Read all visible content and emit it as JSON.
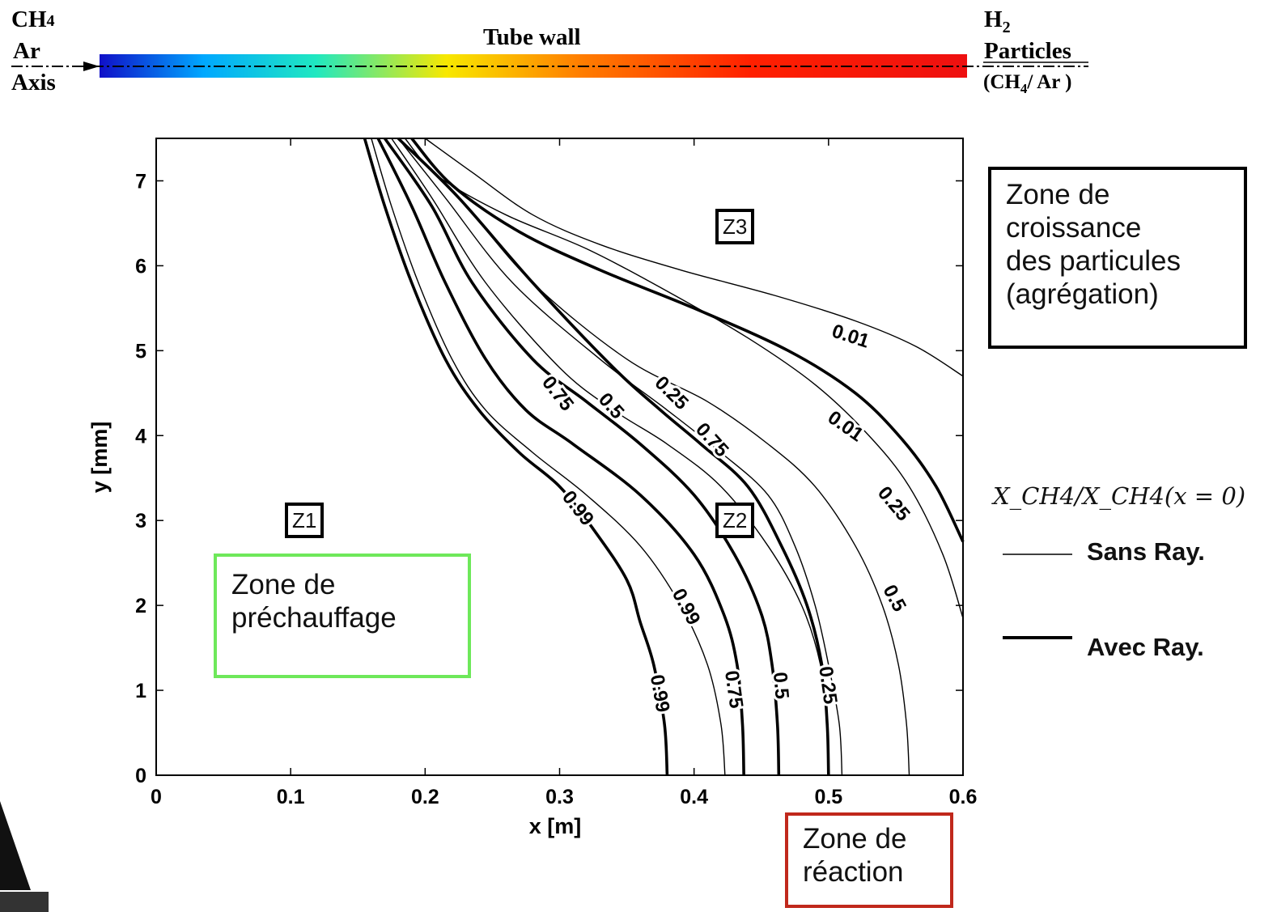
{
  "tube": {
    "inlet_top": "CH",
    "inlet_top_sub": "4",
    "inlet_mid": "Ar",
    "inlet_axis": "Axis",
    "title": "Tube wall",
    "outlet_top": "H",
    "outlet_top_sub": "2",
    "outlet_mid": "Particles",
    "outlet_bottom_pre": "(CH",
    "outlet_bottom_sub": "4",
    "outlet_bottom_post": "/ Ar )",
    "gradient_colors": [
      "#1010c8",
      "#00a8ff",
      "#20e8c0",
      "#f8e800",
      "#ff8000",
      "#ff2000",
      "#ee1010"
    ]
  },
  "annotations": {
    "zone_growth": [
      "Zone de",
      "croissance",
      "des particules",
      "(agrégation)"
    ],
    "zone_preheat": [
      "Zone de",
      "préchauffage"
    ],
    "zone_reaction": [
      "Zone de",
      "réaction"
    ],
    "z1": "Z1",
    "z2": "Z2",
    "z3": "Z3",
    "preheat_color": "#6ee85a",
    "reaction_color": "#c0281c"
  },
  "legend": {
    "title": "X_CH4/X_CH4(x = 0)",
    "sans": "Sans Ray.",
    "avec": "Avec Ray."
  },
  "chart_data": {
    "type": "line",
    "xlabel": "x [m]",
    "ylabel": "y [mm]",
    "xlim": [
      0,
      0.6
    ],
    "ylim": [
      0,
      7.5
    ],
    "xticks": [
      0,
      0.1,
      0.2,
      0.3,
      0.4,
      0.5,
      0.6
    ],
    "xtick_labels": [
      "0",
      "0.1",
      "0.2",
      "0.3",
      "0.4",
      "0.5",
      "0.6"
    ],
    "yticks": [
      0,
      1,
      2,
      3,
      4,
      5,
      6,
      7
    ],
    "ytick_labels": [
      "0",
      "1",
      "2",
      "3",
      "4",
      "5",
      "6",
      "7"
    ],
    "grid": false,
    "series": [
      {
        "level": "0.99",
        "style": "avec",
        "points": [
          [
            0.38,
            0
          ],
          [
            0.378,
            0.6
          ],
          [
            0.37,
            1.3
          ],
          [
            0.36,
            1.8
          ],
          [
            0.35,
            2.3
          ],
          [
            0.325,
            2.9
          ],
          [
            0.3,
            3.4
          ],
          [
            0.27,
            3.8
          ],
          [
            0.24,
            4.3
          ],
          [
            0.215,
            4.9
          ],
          [
            0.19,
            5.8
          ],
          [
            0.17,
            6.7
          ],
          [
            0.155,
            7.5
          ]
        ]
      },
      {
        "level": "0.99",
        "style": "sans",
        "points": [
          [
            0.423,
            0
          ],
          [
            0.42,
            0.6
          ],
          [
            0.41,
            1.3
          ],
          [
            0.39,
            2.0
          ],
          [
            0.36,
            2.7
          ],
          [
            0.32,
            3.3
          ],
          [
            0.28,
            3.8
          ],
          [
            0.245,
            4.3
          ],
          [
            0.22,
            4.9
          ],
          [
            0.195,
            5.8
          ],
          [
            0.175,
            6.7
          ],
          [
            0.16,
            7.5
          ]
        ]
      },
      {
        "level": "0.75",
        "style": "avec",
        "points": [
          [
            0.437,
            0
          ],
          [
            0.436,
            0.6
          ],
          [
            0.432,
            1.3
          ],
          [
            0.422,
            1.9
          ],
          [
            0.4,
            2.6
          ],
          [
            0.36,
            3.3
          ],
          [
            0.31,
            3.9
          ],
          [
            0.275,
            4.3
          ],
          [
            0.245,
            4.9
          ],
          [
            0.215,
            5.8
          ],
          [
            0.19,
            6.7
          ],
          [
            0.165,
            7.5
          ]
        ]
      },
      {
        "level": "0.5",
        "style": "avec",
        "points": [
          [
            0.463,
            0
          ],
          [
            0.462,
            0.6
          ],
          [
            0.458,
            1.3
          ],
          [
            0.45,
            1.9
          ],
          [
            0.43,
            2.6
          ],
          [
            0.4,
            3.3
          ],
          [
            0.36,
            3.9
          ],
          [
            0.32,
            4.4
          ],
          [
            0.28,
            4.9
          ],
          [
            0.235,
            5.8
          ],
          [
            0.205,
            6.7
          ],
          [
            0.17,
            7.5
          ]
        ]
      },
      {
        "level": "0.75",
        "style": "sans",
        "points": [
          [
            0.5,
            0
          ],
          [
            0.499,
            0.6
          ],
          [
            0.494,
            1.3
          ],
          [
            0.48,
            2.0
          ],
          [
            0.455,
            2.7
          ],
          [
            0.42,
            3.4
          ],
          [
            0.38,
            3.9
          ],
          [
            0.34,
            4.3
          ],
          [
            0.3,
            4.8
          ],
          [
            0.245,
            5.8
          ],
          [
            0.205,
            6.8
          ],
          [
            0.175,
            7.5
          ]
        ]
      },
      {
        "level": "0.25",
        "style": "avec",
        "points": [
          [
            0.5,
            0
          ],
          [
            0.499,
            0.6
          ],
          [
            0.495,
            1.3
          ],
          [
            0.484,
            2.0
          ],
          [
            0.465,
            2.7
          ],
          [
            0.44,
            3.4
          ],
          [
            0.405,
            3.9
          ],
          [
            0.375,
            4.3
          ],
          [
            0.34,
            4.8
          ],
          [
            0.28,
            5.8
          ],
          [
            0.225,
            6.8
          ],
          [
            0.18,
            7.5
          ]
        ]
      },
      {
        "level": "0.5",
        "style": "sans",
        "points": [
          [
            0.51,
            0
          ],
          [
            0.508,
            0.6
          ],
          [
            0.5,
            1.3
          ],
          [
            0.49,
            2.0
          ],
          [
            0.475,
            2.7
          ],
          [
            0.455,
            3.3
          ],
          [
            0.42,
            3.8
          ],
          [
            0.38,
            4.3
          ],
          [
            0.33,
            4.9
          ],
          [
            0.265,
            5.8
          ],
          [
            0.215,
            6.8
          ],
          [
            0.18,
            7.5
          ]
        ]
      },
      {
        "level": "0.25",
        "style": "sans",
        "points": [
          [
            0.56,
            0
          ],
          [
            0.558,
            0.6
          ],
          [
            0.552,
            1.3
          ],
          [
            0.54,
            2.0
          ],
          [
            0.52,
            2.7
          ],
          [
            0.49,
            3.4
          ],
          [
            0.455,
            3.9
          ],
          [
            0.41,
            4.4
          ],
          [
            0.35,
            4.9
          ],
          [
            0.28,
            5.8
          ],
          [
            0.225,
            6.8
          ],
          [
            0.18,
            7.5
          ]
        ]
      },
      {
        "level": "0.01",
        "style": "avec",
        "points": [
          [
            0.6,
            2.75
          ],
          [
            0.58,
            3.4
          ],
          [
            0.555,
            3.95
          ],
          [
            0.52,
            4.5
          ],
          [
            0.47,
            5.0
          ],
          [
            0.4,
            5.5
          ],
          [
            0.33,
            5.95
          ],
          [
            0.27,
            6.4
          ],
          [
            0.22,
            6.95
          ],
          [
            0.19,
            7.5
          ]
        ]
      },
      {
        "level": "0.01",
        "style": "sans",
        "points": [
          [
            0.6,
            1.85
          ],
          [
            0.585,
            2.6
          ],
          [
            0.56,
            3.4
          ],
          [
            0.53,
            4.0
          ],
          [
            0.49,
            4.6
          ],
          [
            0.44,
            5.15
          ],
          [
            0.38,
            5.7
          ],
          [
            0.32,
            6.2
          ],
          [
            0.26,
            6.6
          ],
          [
            0.21,
            7.05
          ],
          [
            0.185,
            7.5
          ]
        ]
      },
      {
        "level": "0.01",
        "style": "sans",
        "points": [
          [
            0.6,
            4.7
          ],
          [
            0.565,
            5.05
          ],
          [
            0.52,
            5.35
          ],
          [
            0.46,
            5.65
          ],
          [
            0.39,
            5.95
          ],
          [
            0.33,
            6.25
          ],
          [
            0.28,
            6.6
          ],
          [
            0.235,
            7.1
          ],
          [
            0.2,
            7.5
          ]
        ]
      }
    ],
    "contour_labels": [
      "0.75",
      "0.5",
      "0.25",
      "0.75",
      "0.99",
      "0.99",
      "0.99",
      "0.75",
      "0.5",
      "0.25",
      "0.01",
      "0.01",
      "0.25",
      "0.5"
    ]
  }
}
